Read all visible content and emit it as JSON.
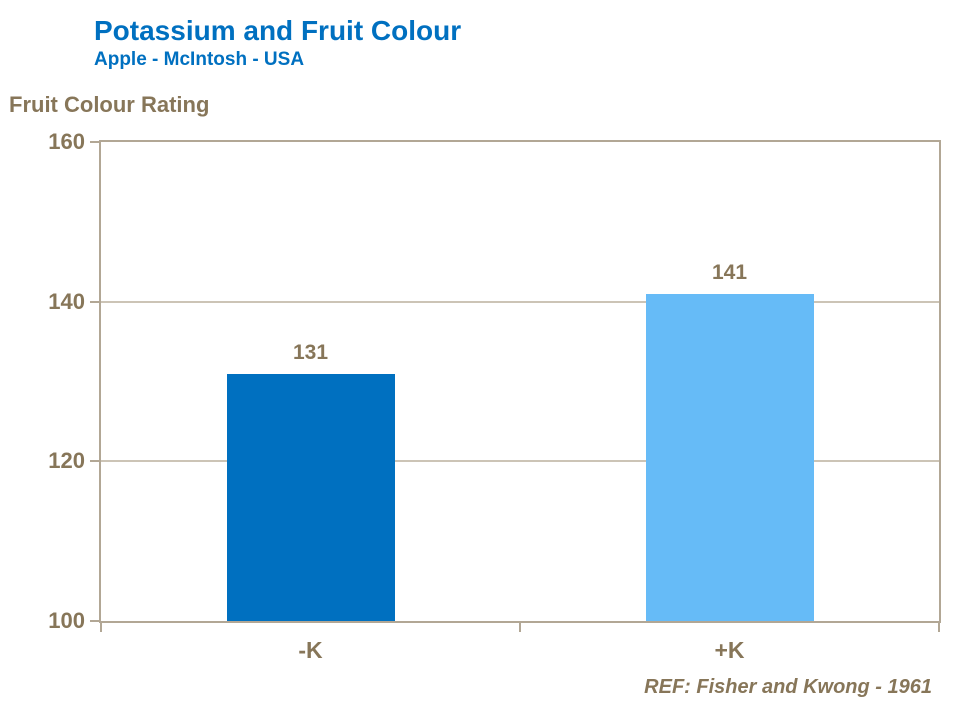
{
  "header": {
    "title": "Potassium and Fruit Colour",
    "subtitle": "Apple - McIntosh - USA"
  },
  "footer": {
    "ref": "REF: Fisher and Kwong - 1961"
  },
  "chart_data": {
    "type": "bar",
    "title": "Potassium and Fruit Colour",
    "subtitle": "Apple - McIntosh - USA",
    "ylabel": "Fruit Colour Rating",
    "xlabel": "",
    "categories": [
      "-K",
      "+K"
    ],
    "values": [
      131,
      141
    ],
    "bar_labels": [
      "131",
      "141"
    ],
    "ylim": [
      100,
      160
    ],
    "yticks": [
      160,
      140,
      120,
      100
    ],
    "grid": "horizontal",
    "legend": "none",
    "bar_colors": [
      "#0070C0",
      "#66BBF7"
    ],
    "annotation": "REF: Fisher and Kwong - 1961"
  },
  "colors": {
    "title_blue": "#0070C0",
    "text_brown": "#877659",
    "axis_line": "#B2A795",
    "gridline": "#CCC4B6",
    "bar_minus_k": "#0070C0",
    "bar_plus_k": "#66BBF7",
    "background": "#FFFFFF"
  }
}
